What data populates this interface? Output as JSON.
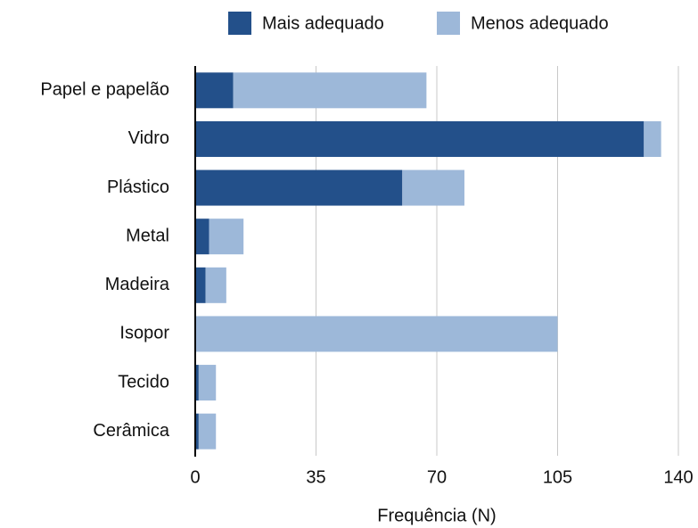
{
  "chart_data": {
    "type": "bar",
    "orientation": "horizontal",
    "stacked": true,
    "categories": [
      "Papel e papelão",
      "Vidro",
      "Plástico",
      "Metal",
      "Madeira",
      "Isopor",
      "Tecido",
      "Cerâmica"
    ],
    "series": [
      {
        "name": "Mais adequado",
        "color": "#23508a",
        "values": [
          11,
          130,
          60,
          4,
          3,
          0,
          1,
          1
        ]
      },
      {
        "name": "Menos adequado",
        "color": "#9db8d9",
        "values": [
          56,
          5,
          18,
          10,
          6,
          105,
          5,
          5
        ]
      }
    ],
    "xlabel": "Frequência (N)",
    "xlim": [
      0,
      140
    ],
    "xticks": [
      0,
      35,
      70,
      105,
      140
    ],
    "grid": true,
    "legend": "top"
  }
}
